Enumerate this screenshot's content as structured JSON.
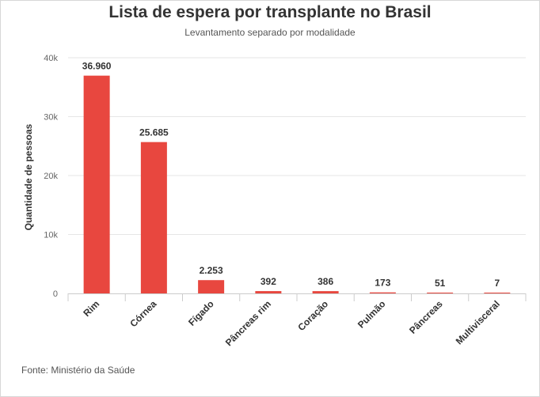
{
  "chart_data": {
    "type": "bar",
    "title": "Lista de espera por transplante no Brasil",
    "subtitle": "Levantamento separado por modalidade",
    "ylabel": "Quantidade de pessoas",
    "xlabel": "",
    "categories": [
      "Rim",
      "Córnea",
      "Fígado",
      "Pâncreas rim",
      "Coração",
      "Pulmão",
      "Pâncreas",
      "Multivisceral"
    ],
    "values": [
      36960,
      25685,
      2253,
      392,
      386,
      173,
      51,
      7
    ],
    "data_labels": [
      "36.960",
      "25.685",
      "2.253",
      "392",
      "386",
      "173",
      "51",
      "7"
    ],
    "ylim": [
      0,
      40000
    ],
    "yticks": [
      0,
      10000,
      20000,
      30000,
      40000
    ],
    "ytick_labels": [
      "0",
      "10k",
      "20k",
      "30k",
      "40k"
    ],
    "grid": true,
    "bar_color": "#e8473f",
    "source": "Fonte: Ministério da Saúde"
  }
}
